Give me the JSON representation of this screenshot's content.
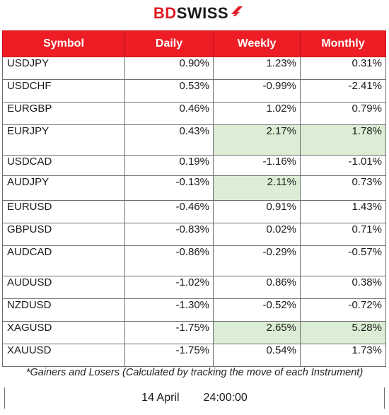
{
  "brand": {
    "logo_part1": "BD",
    "logo_part2": "SWISS",
    "accent_color": "#ee1c24",
    "highlight_color": "#dbeed5"
  },
  "table": {
    "headers": [
      "Symbol",
      "Daily",
      "Weekly",
      "Monthly"
    ],
    "rows": [
      {
        "symbol": "USDJPY",
        "daily": "0.90%",
        "weekly": "1.23%",
        "monthly": "0.31%"
      },
      {
        "symbol": "USDCHF",
        "daily": "0.53%",
        "weekly": "-0.99%",
        "monthly": "-2.41%"
      },
      {
        "symbol": "EURGBP",
        "daily": "0.46%",
        "weekly": "1.02%",
        "monthly": "0.79%"
      },
      {
        "symbol": "EURJPY",
        "daily": "0.43%",
        "weekly": "2.17%",
        "monthly": "1.78%"
      },
      {
        "symbol": "USDCAD",
        "daily": "0.19%",
        "weekly": "-1.16%",
        "monthly": "-1.01%"
      },
      {
        "symbol": "AUDJPY",
        "daily": "-0.13%",
        "weekly": "2.11%",
        "monthly": "0.73%"
      },
      {
        "symbol": "EURUSD",
        "daily": "-0.46%",
        "weekly": "0.91%",
        "monthly": "1.43%"
      },
      {
        "symbol": "GBPUSD",
        "daily": "-0.83%",
        "weekly": "0.02%",
        "monthly": "0.71%"
      },
      {
        "symbol": "AUDCAD",
        "daily": "-0.86%",
        "weekly": "-0.29%",
        "monthly": "-0.57%"
      },
      {
        "symbol": "AUDUSD",
        "daily": "-1.02%",
        "weekly": "0.86%",
        "monthly": "0.38%"
      },
      {
        "symbol": "NZDUSD",
        "daily": "-1.30%",
        "weekly": "-0.52%",
        "monthly": "-0.72%"
      },
      {
        "symbol": "XAGUSD",
        "daily": "-1.75%",
        "weekly": "2.65%",
        "monthly": "5.28%"
      },
      {
        "symbol": "XAUUSD",
        "daily": "-1.75%",
        "weekly": "0.54%",
        "monthly": "1.73%"
      }
    ]
  },
  "footer": {
    "note": "*Gainers and Losers (Calculated by tracking the move of each Instrument)",
    "date": "14 April",
    "time": "24:00:00"
  }
}
